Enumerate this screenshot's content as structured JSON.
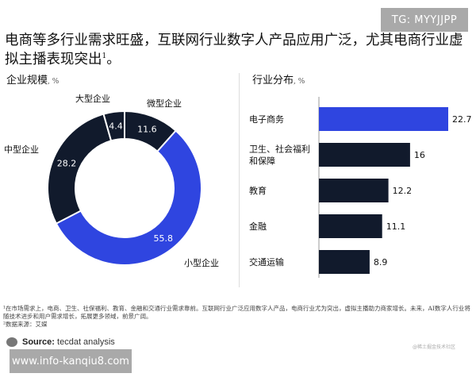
{
  "watermark_top": "TG: MYYJJPP",
  "title": "电商等多行业需求旺盛，互联网行业数字人产品应用广泛，尤其电商行业虚拟主播表现突出",
  "title_sup": "1",
  "title_end": "。",
  "colors": {
    "blue": "#2f45e0",
    "dark": "#111a2c"
  },
  "chart_data": [
    {
      "type": "pie",
      "title": "企业规模",
      "unit": "%",
      "donut": true,
      "slices": [
        {
          "label": "微型企业",
          "value": 11.6
        },
        {
          "label": "小型企业",
          "value": 55.8
        },
        {
          "label": "中型企业",
          "value": 28.2
        },
        {
          "label": "大型企业",
          "value": 4.4
        }
      ],
      "highlight": "小型企业"
    },
    {
      "type": "bar",
      "orientation": "horizontal",
      "title": "行业分布",
      "unit": "%",
      "categories": [
        "电子商务",
        "卫生、社会福利和保障",
        "教育",
        "金融",
        "交通运输"
      ],
      "values": [
        22.7,
        16,
        12.2,
        11.1,
        8.9
      ],
      "highlight": "电子商务",
      "xlim": [
        0,
        25
      ]
    }
  ],
  "notes": [
    "¹在市场需求上，电商、卫生、社保福利、教育、金融和交通行业需求靠前。互联网行业广泛应用数字人产品，电商行业尤为突出，虚拟主播助力商家增长。未来，AI数字人行业将随技术进步和用户需求增长，拓展更多领域，前景广阔。",
    "²数据来源：艾媒"
  ],
  "source_label": "Source:",
  "source_text": "tecdat analysis",
  "watermark_bottom": "www.info-kanqiu8.com",
  "corner_mark": "@稀土掘金技术社区"
}
